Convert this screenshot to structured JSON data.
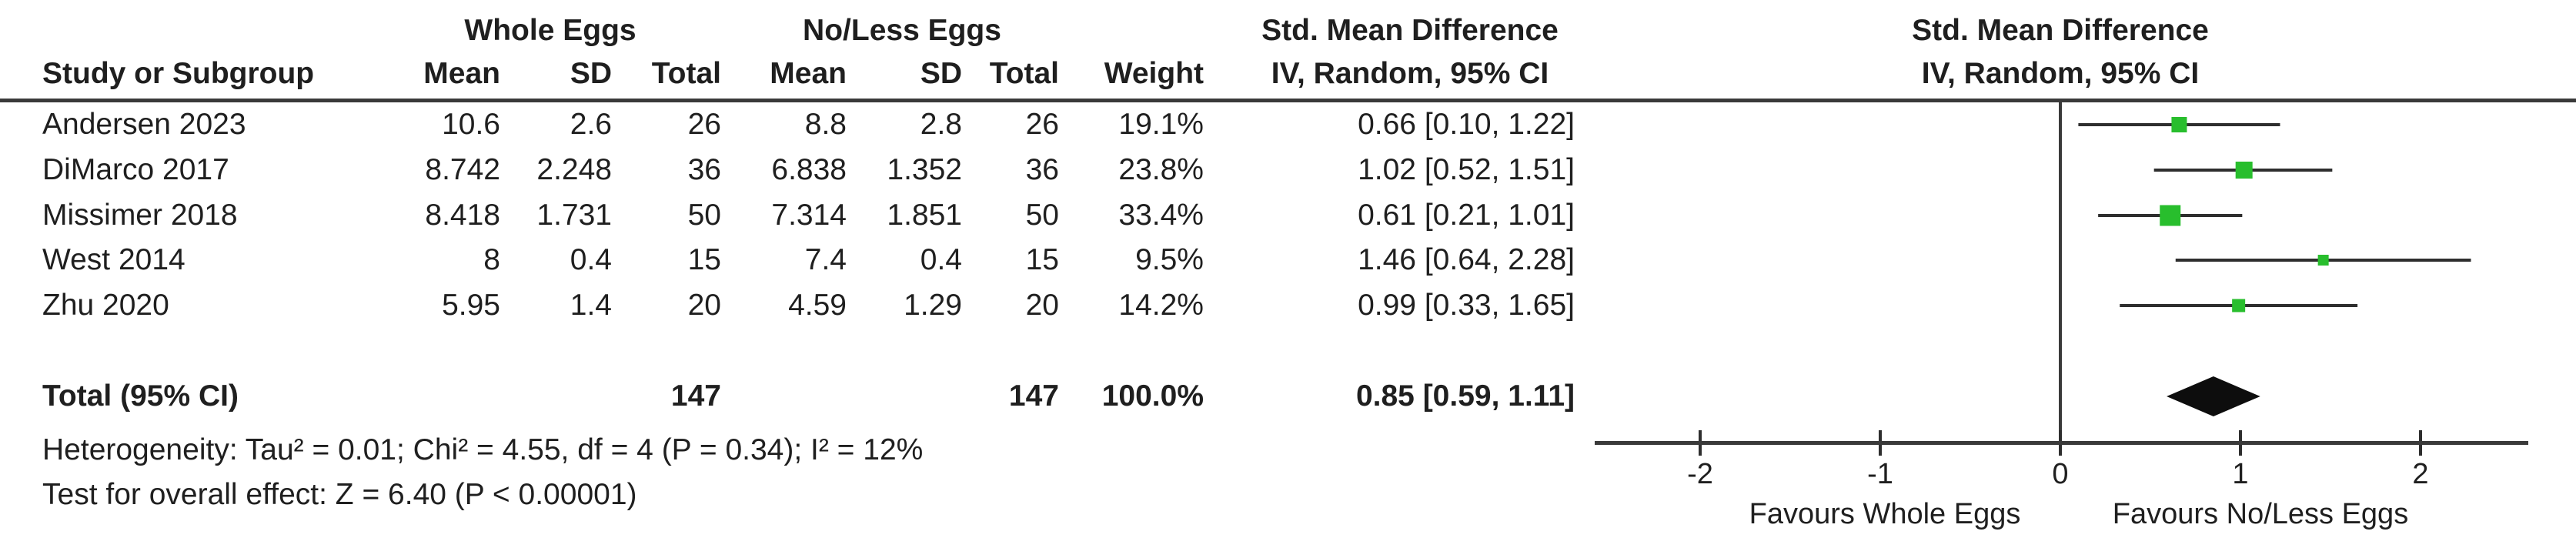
{
  "header": {
    "group1": "Whole Eggs",
    "group2": "No/Less Eggs",
    "effect_line1": "Std. Mean Difference",
    "effect_line2": "IV, Random, 95% CI",
    "plot_line1": "Std. Mean Difference",
    "plot_line2": "IV, Random, 95% CI",
    "study_col": "Study or Subgroup",
    "mean_col": "Mean",
    "sd_col": "SD",
    "total_col": "Total",
    "weight_col": "Weight"
  },
  "studies": [
    {
      "name": "Andersen 2023",
      "mean1": "10.6",
      "sd1": "2.6",
      "total1": "26",
      "mean2": "8.8",
      "sd2": "2.8",
      "total2": "26",
      "weight": "19.1%",
      "ci_text": "0.66 [0.10, 1.22]"
    },
    {
      "name": "DiMarco 2017",
      "mean1": "8.742",
      "sd1": "2.248",
      "total1": "36",
      "mean2": "6.838",
      "sd2": "1.352",
      "total2": "36",
      "weight": "23.8%",
      "ci_text": "1.02 [0.52, 1.51]"
    },
    {
      "name": "Missimer 2018",
      "mean1": "8.418",
      "sd1": "1.731",
      "total1": "50",
      "mean2": "7.314",
      "sd2": "1.851",
      "total2": "50",
      "weight": "33.4%",
      "ci_text": "0.61 [0.21, 1.01]"
    },
    {
      "name": "West 2014",
      "mean1": "8",
      "sd1": "0.4",
      "total1": "15",
      "mean2": "7.4",
      "sd2": "0.4",
      "total2": "15",
      "weight": "9.5%",
      "ci_text": "1.46 [0.64, 2.28]"
    },
    {
      "name": "Zhu 2020",
      "mean1": "5.95",
      "sd1": "1.4",
      "total1": "20",
      "mean2": "4.59",
      "sd2": "1.29",
      "total2": "20",
      "weight": "14.2%",
      "ci_text": "0.99 [0.33, 1.65]"
    }
  ],
  "total_row": {
    "label": "Total (95% CI)",
    "total1": "147",
    "total2": "147",
    "weight": "100.0%",
    "ci_text": "0.85 [0.59, 1.11]"
  },
  "footnotes": {
    "heterogeneity": "Heterogeneity: Tau² = 0.01; Chi² = 4.55, df = 4 (P = 0.34); I² = 12%",
    "overall_effect": "Test for overall effect: Z = 6.40 (P < 0.00001)"
  },
  "axis": {
    "favours_left": "Favours Whole Eggs",
    "favours_right": "Favours No/Less Eggs"
  },
  "colors": {
    "marker_green": "#28be2d",
    "ci_line": "#2e2e2e",
    "diamond": "#0d0d0d",
    "rule": "#3a3a3a"
  },
  "chart_data": {
    "type": "forest",
    "title": "Std. Mean Difference — IV, Random, 95% CI",
    "effect_measure": "Std. Mean Difference",
    "model": "IV, Random, 95% CI",
    "x_ticks": [
      -2,
      -1,
      0,
      1,
      2
    ],
    "xlim": [
      -2.6,
      2.6
    ],
    "zero_line": 0,
    "favours_left": "Favours Whole Eggs",
    "favours_right": "Favours No/Less Eggs",
    "studies": [
      {
        "name": "Andersen 2023",
        "est": 0.66,
        "lo": 0.1,
        "hi": 1.22,
        "weight_pct": 19.1
      },
      {
        "name": "DiMarco 2017",
        "est": 1.02,
        "lo": 0.52,
        "hi": 1.51,
        "weight_pct": 23.8
      },
      {
        "name": "Missimer 2018",
        "est": 0.61,
        "lo": 0.21,
        "hi": 1.01,
        "weight_pct": 33.4
      },
      {
        "name": "West 2014",
        "est": 1.46,
        "lo": 0.64,
        "hi": 2.28,
        "weight_pct": 9.5
      },
      {
        "name": "Zhu 2020",
        "est": 0.99,
        "lo": 0.33,
        "hi": 1.65,
        "weight_pct": 14.2
      }
    ],
    "total": {
      "name": "Total (95% CI)",
      "est": 0.85,
      "lo": 0.59,
      "hi": 1.11,
      "weight_pct": 100.0
    }
  }
}
